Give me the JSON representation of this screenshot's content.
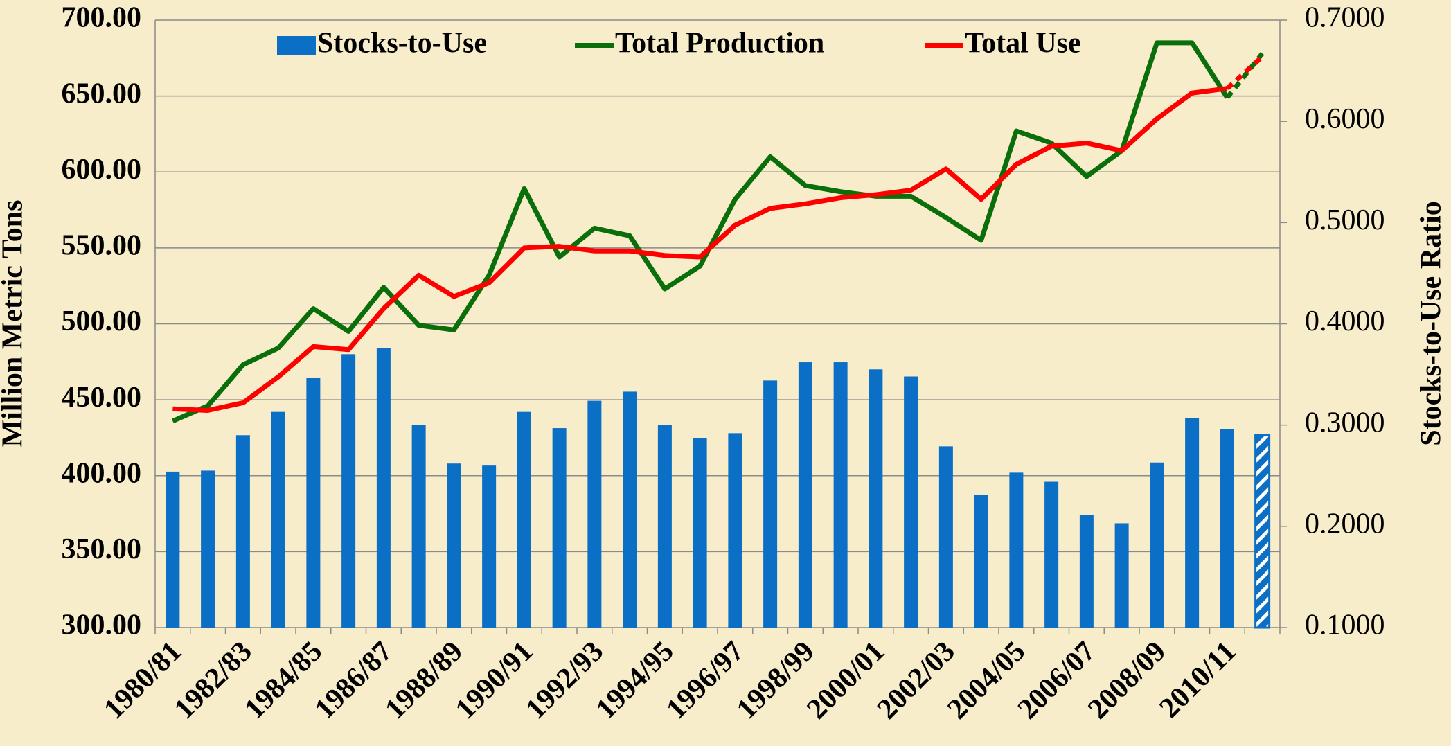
{
  "chart_data": {
    "type": "bar_line",
    "categories": [
      "1980/81",
      null,
      "1982/83",
      null,
      "1984/85",
      null,
      "1986/87",
      null,
      "1988/89",
      null,
      "1990/91",
      null,
      "1992/93",
      null,
      "1994/95",
      null,
      "1996/97",
      null,
      "1998/99",
      null,
      "2000/01",
      null,
      "2002/03",
      null,
      "2004/05",
      null,
      "2006/07",
      null,
      "2008/09",
      null,
      "2010/11",
      null
    ],
    "y_label": "Million Metric Tons",
    "y2_label": "Stocks-to-Use Ratio",
    "ylim": [
      300,
      700
    ],
    "yticks": [
      {
        "value": 300,
        "label": "300.00"
      },
      {
        "value": 350,
        "label": "350.00"
      },
      {
        "value": 400,
        "label": "400.00"
      },
      {
        "value": 450,
        "label": "450.00"
      },
      {
        "value": 500,
        "label": "500.00"
      },
      {
        "value": 550,
        "label": "550.00"
      },
      {
        "value": 600,
        "label": "600.00"
      },
      {
        "value": 650,
        "label": "650.00"
      },
      {
        "value": 700,
        "label": "700.00"
      }
    ],
    "y2lim": [
      0.1,
      0.7
    ],
    "y2ticks": [
      {
        "value": 0.1,
        "label": "0.1000"
      },
      {
        "value": 0.2,
        "label": "0.2000"
      },
      {
        "value": 0.3,
        "label": "0.3000"
      },
      {
        "value": 0.4,
        "label": "0.4000"
      },
      {
        "value": 0.5,
        "label": "0.5000"
      },
      {
        "value": 0.6,
        "label": "0.6000"
      },
      {
        "value": 0.7,
        "label": "0.7000"
      }
    ],
    "grid": true,
    "legend": "top",
    "last_is_projection": true,
    "series": [
      {
        "name": "Stocks-to-Use",
        "kind": "bar",
        "axis": "y2",
        "color": "#0b6fc6",
        "values": [
          0.254,
          0.255,
          0.29,
          0.313,
          0.347,
          0.37,
          0.376,
          0.3,
          0.262,
          0.26,
          0.313,
          0.297,
          0.324,
          0.333,
          0.3,
          0.287,
          0.292,
          0.344,
          0.362,
          0.362,
          0.355,
          0.348,
          0.279,
          0.231,
          0.253,
          0.244,
          0.211,
          0.203,
          0.263,
          0.307,
          0.296,
          0.29
        ]
      },
      {
        "name": "Total Production",
        "kind": "line",
        "color": "#0a6e0a",
        "values": [
          436,
          446,
          473,
          484,
          510,
          495,
          524,
          499,
          496,
          532,
          589,
          544,
          563,
          558,
          523,
          538,
          582,
          610,
          591,
          587,
          584,
          584,
          570,
          555,
          627,
          619,
          597,
          614,
          685,
          685,
          649,
          678
        ]
      },
      {
        "name": "Total Use",
        "kind": "line",
        "color": "#ff0000",
        "values": [
          444,
          443,
          448,
          465,
          485,
          483,
          510,
          532,
          518,
          527,
          550,
          551,
          548,
          548,
          545,
          544,
          565,
          576,
          579,
          583,
          585,
          588,
          602,
          582,
          605,
          617,
          619,
          614,
          635,
          652,
          655,
          676
        ]
      }
    ]
  }
}
